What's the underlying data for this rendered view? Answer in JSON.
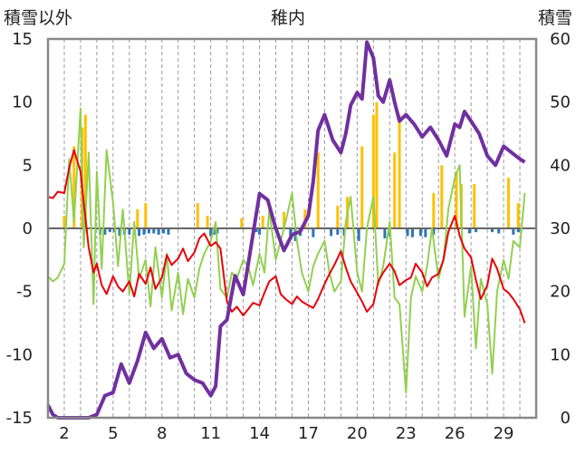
{
  "chart_data": {
    "type": "bar+line",
    "title": "稚内",
    "left_axis_title": "積雪以外",
    "right_axis_title": "積雪",
    "left_ylim": [
      -15,
      15
    ],
    "left_yticks": [
      15,
      10,
      5,
      0,
      -5,
      -10,
      -15
    ],
    "right_ylim": [
      0,
      60
    ],
    "right_yticks": [
      60,
      50,
      40,
      30,
      20,
      10,
      0
    ],
    "x_range": [
      1,
      31
    ],
    "x_tick_labels": [
      "2",
      "5",
      "8",
      "11",
      "14",
      "17",
      "20",
      "23",
      "26",
      "29"
    ],
    "x_tick_values": [
      2,
      5,
      8,
      11,
      14,
      17,
      20,
      23,
      26,
      29
    ],
    "grid": "vertical dashed, one per day",
    "colors": {
      "temperature": "#e8000b",
      "wind": "#92d050",
      "snow_depth": "#7030a0",
      "snowfall_bar": "#ffc000",
      "negative_bar": "#2e75b6",
      "zero_line": "#666666",
      "frame": "#888888"
    },
    "series": [
      {
        "key": "temperature",
        "axis": "left",
        "x": [
          1.0,
          1.3,
          1.6,
          2.0,
          2.3,
          2.6,
          3.0,
          3.2,
          3.5,
          3.8,
          4.0,
          4.3,
          4.6,
          5.0,
          5.3,
          5.6,
          6.0,
          6.3,
          6.6,
          7.0,
          7.3,
          7.6,
          8.0,
          8.3,
          8.6,
          9.0,
          9.3,
          9.6,
          10.0,
          10.3,
          10.6,
          11.0,
          11.3,
          11.6,
          12.0,
          12.3,
          12.6,
          13.0,
          13.3,
          13.6,
          14.0,
          14.3,
          14.6,
          15.0,
          15.3,
          15.6,
          16.0,
          16.3,
          16.6,
          17.0,
          17.3,
          17.6,
          18.0,
          18.3,
          18.6,
          19.0,
          19.3,
          19.6,
          20.0,
          20.3,
          20.6,
          21.0,
          21.3,
          21.6,
          22.0,
          22.3,
          22.6,
          23.0,
          23.3,
          23.6,
          24.0,
          24.3,
          24.6,
          25.0,
          25.3,
          25.6,
          26.0,
          26.3,
          26.6,
          27.0,
          27.3,
          27.6,
          28.0,
          28.3,
          28.6,
          29.0,
          29.3,
          29.6,
          30.0,
          30.3
        ],
        "values": [
          2.5,
          2.4,
          2.9,
          2.8,
          4.8,
          6.2,
          4.5,
          2.0,
          -1.5,
          -3.5,
          -2.8,
          -4.5,
          -5.2,
          -3.8,
          -4.6,
          -5.0,
          -4.2,
          -5.4,
          -3.6,
          -4.4,
          -3.1,
          -4.8,
          -3.9,
          -2.1,
          -2.9,
          -2.4,
          -1.6,
          -2.6,
          -1.9,
          -0.8,
          -0.4,
          -1.4,
          -1.1,
          -1.6,
          -5.8,
          -6.6,
          -6.2,
          -6.9,
          -6.4,
          -5.9,
          -6.1,
          -5.1,
          -4.2,
          -3.8,
          -5.2,
          -5.6,
          -6.0,
          -5.4,
          -5.8,
          -6.1,
          -6.3,
          -5.6,
          -4.4,
          -3.6,
          -2.9,
          -1.8,
          -3.1,
          -4.2,
          -5.1,
          -5.8,
          -6.6,
          -6.0,
          -4.2,
          -3.5,
          -2.8,
          -3.4,
          -4.5,
          -4.1,
          -3.9,
          -2.8,
          -3.5,
          -4.6,
          -3.9,
          -3.6,
          -2.5,
          -0.3,
          1.0,
          -0.6,
          -1.6,
          -2.3,
          -4.1,
          -5.6,
          -4.5,
          -2.4,
          -3.2,
          -4.8,
          -5.1,
          -5.6,
          -6.4,
          -7.5
        ]
      },
      {
        "key": "wind",
        "axis": "left",
        "x": [
          1.0,
          1.3,
          1.6,
          2.0,
          2.3,
          2.6,
          3.0,
          3.2,
          3.5,
          3.8,
          4.0,
          4.3,
          4.6,
          5.0,
          5.3,
          5.6,
          6.0,
          6.3,
          6.6,
          7.0,
          7.3,
          7.6,
          8.0,
          8.3,
          8.6,
          9.0,
          9.3,
          9.6,
          10.0,
          10.3,
          10.6,
          11.0,
          11.3,
          11.6,
          12.0,
          12.3,
          12.6,
          13.0,
          13.3,
          13.6,
          14.0,
          14.3,
          14.6,
          15.0,
          15.3,
          15.6,
          16.0,
          16.3,
          16.6,
          17.0,
          17.3,
          17.6,
          18.0,
          18.3,
          18.6,
          19.0,
          19.3,
          19.6,
          20.0,
          20.3,
          20.6,
          21.0,
          21.3,
          21.6,
          22.0,
          22.3,
          22.6,
          23.0,
          23.3,
          23.6,
          24.0,
          24.3,
          24.6,
          25.0,
          25.3,
          25.6,
          26.0,
          26.3,
          26.6,
          27.0,
          27.3,
          27.6,
          28.0,
          28.3,
          28.6,
          29.0,
          29.3,
          29.6,
          30.0,
          30.3
        ],
        "values": [
          -3.8,
          -4.2,
          -3.9,
          -2.8,
          5.5,
          0.5,
          9.5,
          -1.5,
          6.0,
          -6.0,
          4.5,
          -3.2,
          6.2,
          2.0,
          -3.0,
          1.5,
          -5.2,
          0.5,
          -4.0,
          -2.5,
          -6.2,
          -1.5,
          -5.5,
          -2.0,
          -6.5,
          -3.5,
          -6.8,
          -4.0,
          -5.5,
          -3.2,
          -2.0,
          -1.0,
          0.5,
          -4.8,
          -5.5,
          -3.5,
          -4.0,
          -2.5,
          -3.0,
          -4.5,
          -2.0,
          -3.5,
          1.5,
          -2.5,
          -1.0,
          0.5,
          2.8,
          -1.0,
          -3.5,
          -5.0,
          -3.0,
          -2.0,
          -1.0,
          -3.5,
          -5.0,
          -4.2,
          0.5,
          2.5,
          -3.5,
          -5.0,
          0.0,
          2.5,
          -4.5,
          -3.0,
          0.5,
          -5.5,
          -6.0,
          -13.0,
          -5.5,
          -3.8,
          -5.0,
          -3.0,
          0.0,
          -4.0,
          -2.5,
          1.5,
          4.0,
          5.0,
          -7.0,
          -3.0,
          -9.5,
          -4.0,
          -6.0,
          -11.5,
          -5.0,
          -2.5,
          -4.0,
          -1.0,
          -1.5,
          2.8
        ]
      },
      {
        "key": "snow_depth",
        "axis": "right",
        "x": [
          1.0,
          1.3,
          1.6,
          2.0,
          2.5,
          3.0,
          3.5,
          4.0,
          4.5,
          5.0,
          5.5,
          6.0,
          6.5,
          7.0,
          7.5,
          8.0,
          8.5,
          9.0,
          9.5,
          10.0,
          10.5,
          11.0,
          11.3,
          11.6,
          12.0,
          12.5,
          13.0,
          13.5,
          14.0,
          14.5,
          15.0,
          15.5,
          16.0,
          16.5,
          17.0,
          17.3,
          17.6,
          18.0,
          18.5,
          19.0,
          19.3,
          19.6,
          20.0,
          20.3,
          20.6,
          21.0,
          21.3,
          21.6,
          22.0,
          22.3,
          22.6,
          23.0,
          23.5,
          24.0,
          24.5,
          25.0,
          25.5,
          26.0,
          26.3,
          26.6,
          27.0,
          27.5,
          28.0,
          28.5,
          29.0,
          29.5,
          30.0,
          30.3
        ],
        "values": [
          2.0,
          0.5,
          0.0,
          0.0,
          0.0,
          0.0,
          0.0,
          0.5,
          3.5,
          4.0,
          8.5,
          5.5,
          9.0,
          13.5,
          11.0,
          12.5,
          9.5,
          10.0,
          7.0,
          6.0,
          5.5,
          3.5,
          5.0,
          14.5,
          15.5,
          22.5,
          19.5,
          27.5,
          35.5,
          34.5,
          30.0,
          26.5,
          29.0,
          29.5,
          32.0,
          37.5,
          45.5,
          48.0,
          44.0,
          42.0,
          45.0,
          49.5,
          51.5,
          50.5,
          59.5,
          57.0,
          51.0,
          50.0,
          53.5,
          50.0,
          47.0,
          48.0,
          46.5,
          44.5,
          46.0,
          44.0,
          41.5,
          46.5,
          46.0,
          48.5,
          47.0,
          45.0,
          41.5,
          40.0,
          43.0,
          42.0,
          41.0,
          40.5
        ]
      }
    ],
    "snowfall_bars": {
      "axis": "left",
      "x": [
        2.0,
        2.6,
        3.1,
        3.3,
        6.5,
        7.0,
        10.2,
        10.8,
        12.9,
        14.2,
        15.5,
        16.8,
        17.6,
        18.8,
        19.4,
        20.3,
        21.0,
        21.2,
        22.3,
        22.6,
        24.7,
        25.2,
        26.1,
        26.4,
        27.2,
        29.3,
        29.9
      ],
      "values": [
        1.0,
        6.5,
        8.0,
        9.0,
        1.5,
        2.0,
        2.0,
        1.0,
        0.8,
        1.0,
        1.3,
        1.5,
        6.0,
        1.8,
        2.5,
        6.5,
        9.0,
        10.0,
        6.0,
        9.0,
        2.8,
        5.0,
        4.5,
        3.5,
        3.5,
        4.0,
        2.0
      ]
    },
    "negative_bars": {
      "axis": "left",
      "x": [
        4.2,
        4.5,
        4.8,
        5.1,
        5.4,
        5.7,
        6.0,
        6.3,
        6.6,
        6.9,
        7.2,
        7.5,
        7.8,
        8.1,
        8.4,
        11.0,
        11.2,
        11.4,
        13.8,
        14.0,
        15.9,
        16.2,
        16.5,
        17.3,
        18.4,
        18.8,
        19.2,
        20.1,
        21.7,
        22.0,
        23.1,
        23.4,
        23.9,
        24.2,
        24.7,
        26.9,
        27.3,
        28.3,
        28.7,
        29.6,
        29.9
      ],
      "values": [
        -0.5,
        -0.5,
        -0.3,
        -0.3,
        -0.6,
        -0.5,
        -0.5,
        -0.3,
        -0.6,
        -0.5,
        -0.4,
        -0.4,
        -0.5,
        -0.4,
        -0.5,
        -0.6,
        -0.5,
        -0.4,
        -0.3,
        -0.5,
        -0.8,
        -1.0,
        -0.6,
        -0.7,
        -0.6,
        -0.5,
        -0.6,
        -1.0,
        -0.8,
        -0.6,
        -0.6,
        -0.7,
        -0.6,
        -0.7,
        -0.5,
        -0.4,
        -0.3,
        -0.3,
        -0.4,
        -0.5,
        -0.3
      ]
    }
  }
}
